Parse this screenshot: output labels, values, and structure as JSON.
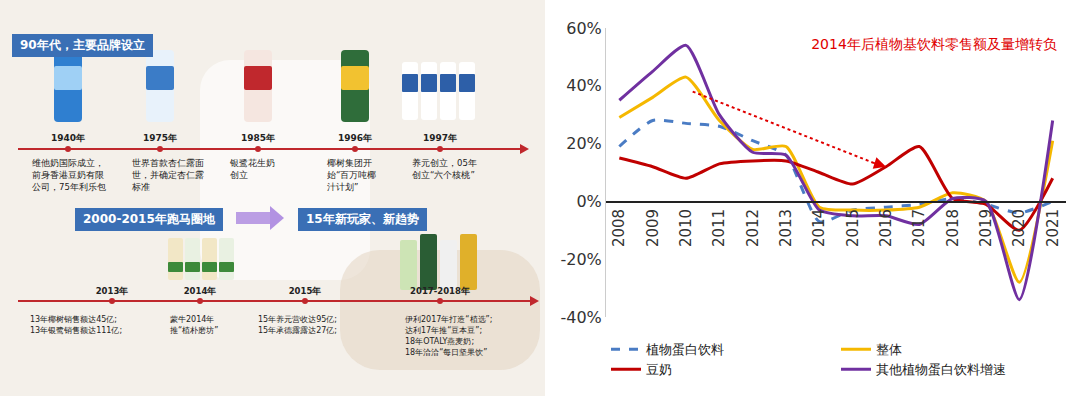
{
  "timeline": {
    "header_top": "90年代，主要品牌设立",
    "top": [
      {
        "year": "1940年",
        "lines": [
          "维他奶国际成立，",
          "前身香港豆奶有限",
          "公司，75年利乐包"
        ]
      },
      {
        "year": "1975年",
        "lines": [
          "世界首款杏仁露面",
          "世，并确定杏仁露",
          "标准"
        ]
      },
      {
        "year": "1985年",
        "lines": [
          "银鹭花生奶",
          "创立"
        ]
      },
      {
        "year": "1996年",
        "lines": [
          "椰树集团开",
          "始“百万吨椰",
          "汁计划”"
        ]
      },
      {
        "year": "1997年",
        "lines": [
          "养元创立，05年",
          "创立“六个核桃”"
        ]
      }
    ],
    "header_left": "2000-2015年跑马圈地",
    "header_right": "15年新玩家、新趋势",
    "bottom": [
      {
        "year": "2013年",
        "lines": [
          "13年椰树销售额达45亿;",
          "13年银鹭销售额达111亿;"
        ]
      },
      {
        "year": "2014年",
        "lines": [
          "蒙牛2014年",
          "推“植朴磨坊”"
        ]
      },
      {
        "year": "2015年",
        "lines": [
          "15年养元营收达95亿;",
          "15年承德露露达27亿;"
        ]
      },
      {
        "year": "2017-2018年",
        "lines": [
          "伊利2017年打造“植选”;",
          "达利17年推“豆本豆”;",
          "18年OTALY燕麦奶;",
          "18年洽洽“每日坚果饮”"
        ]
      }
    ]
  },
  "chart_data": {
    "type": "line",
    "title": "2014年后植物基饮料零售额及量增转负",
    "x": [
      2008,
      2009,
      2010,
      2011,
      2012,
      2013,
      2014,
      2015,
      2016,
      2017,
      2018,
      2019,
      2020,
      2021
    ],
    "series": [
      {
        "name": "植物蛋白饮料",
        "color": "#4a7cc4",
        "line_style": "dashed",
        "values": [
          19,
          28,
          27,
          26,
          21,
          16,
          -7,
          -3,
          -2,
          -1,
          1,
          -1,
          -4,
          0
        ]
      },
      {
        "name": "整体",
        "color": "#f5b800",
        "line_style": "solid",
        "values": [
          29,
          36,
          43,
          28,
          18,
          19,
          -2,
          -3,
          -3,
          -2,
          3,
          0,
          -28,
          21
        ]
      },
      {
        "name": "豆奶",
        "color": "#c00000",
        "line_style": "solid",
        "values": [
          15,
          12,
          8,
          13,
          14,
          14,
          10,
          6,
          12,
          19,
          1,
          -1,
          -10,
          8
        ]
      },
      {
        "name": "其他植物蛋白饮料增速",
        "color": "#7030a0",
        "line_style": "solid",
        "values": [
          35,
          45,
          54,
          30,
          17,
          16,
          -3,
          -5,
          -5,
          -8,
          1,
          0,
          -34,
          28
        ]
      }
    ],
    "xlim": [
      2007.6,
      2021.4
    ],
    "xticks": [
      2008,
      2009,
      2010,
      2011,
      2012,
      2013,
      2014,
      2015,
      2016,
      2017,
      2018,
      2019,
      2020,
      2021
    ],
    "ylim": [
      -40,
      60
    ],
    "yticks": [
      {
        "value": -40,
        "label": "-40%"
      },
      {
        "value": -20,
        "label": "-20%"
      },
      {
        "value": 0,
        "label": "0%"
      },
      {
        "value": 20,
        "label": "20%"
      },
      {
        "value": 40,
        "label": "40%"
      },
      {
        "value": 60,
        "label": "60%"
      }
    ],
    "grid": false,
    "legend": "bottom"
  }
}
